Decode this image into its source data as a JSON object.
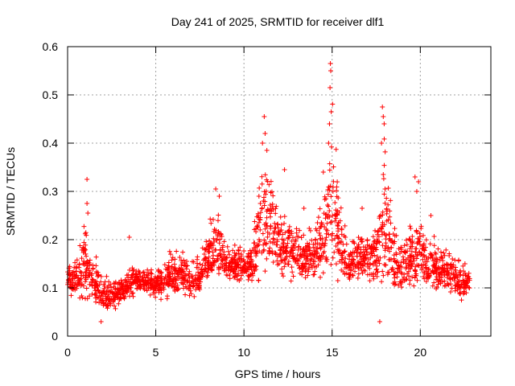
{
  "chart_data": {
    "type": "scatter",
    "title": "Day 241 of 2025, SRMTID for receiver dlf1",
    "xlabel": "GPS time / hours",
    "ylabel": "SRMTID / TECUs",
    "xlim": [
      0,
      24
    ],
    "ylim": [
      0,
      0.6
    ],
    "xticks": [
      0,
      5,
      10,
      15,
      20
    ],
    "xtick_labels": [
      "0",
      "5",
      "10",
      "15",
      "20"
    ],
    "yticks": [
      0,
      0.1,
      0.2,
      0.3,
      0.4,
      0.5,
      0.6
    ],
    "ytick_labels": [
      "0",
      "0.1",
      "0.2",
      "0.3",
      "0.4",
      "0.5",
      "0.6"
    ],
    "grid": true,
    "marker": "+",
    "color": "#ff0000",
    "envelope": {
      "hour": [
        0.0,
        0.5,
        1.0,
        1.5,
        2.0,
        2.5,
        3.0,
        3.5,
        4.0,
        4.5,
        5.0,
        5.5,
        6.0,
        6.5,
        7.0,
        7.5,
        8.0,
        8.5,
        9.0,
        9.5,
        10.0,
        10.5,
        11.0,
        11.5,
        12.0,
        12.5,
        13.0,
        13.5,
        14.0,
        14.5,
        15.0,
        15.5,
        16.0,
        16.5,
        17.0,
        17.5,
        18.0,
        18.5,
        19.0,
        19.5,
        20.0,
        20.5,
        21.0,
        21.5,
        22.0,
        22.5,
        22.8
      ],
      "low": [
        0.08,
        0.07,
        0.05,
        0.05,
        0.04,
        0.04,
        0.06,
        0.07,
        0.08,
        0.08,
        0.07,
        0.06,
        0.07,
        0.08,
        0.07,
        0.08,
        0.09,
        0.1,
        0.1,
        0.1,
        0.1,
        0.09,
        0.09,
        0.1,
        0.11,
        0.11,
        0.11,
        0.1,
        0.1,
        0.09,
        0.09,
        0.09,
        0.09,
        0.1,
        0.1,
        0.09,
        0.08,
        0.08,
        0.08,
        0.09,
        0.09,
        0.08,
        0.08,
        0.08,
        0.07,
        0.07,
        0.08
      ],
      "high": [
        0.15,
        0.18,
        0.26,
        0.2,
        0.14,
        0.13,
        0.14,
        0.15,
        0.16,
        0.16,
        0.16,
        0.17,
        0.2,
        0.18,
        0.17,
        0.18,
        0.25,
        0.28,
        0.21,
        0.2,
        0.2,
        0.22,
        0.42,
        0.38,
        0.3,
        0.26,
        0.24,
        0.22,
        0.25,
        0.33,
        0.55,
        0.28,
        0.22,
        0.23,
        0.24,
        0.25,
        0.45,
        0.24,
        0.22,
        0.25,
        0.28,
        0.22,
        0.22,
        0.2,
        0.18,
        0.16,
        0.17
      ]
    },
    "peaks": [
      {
        "x": 1.1,
        "y": 0.325
      },
      {
        "x": 1.1,
        "y": 0.275
      },
      {
        "x": 1.15,
        "y": 0.255
      },
      {
        "x": 3.5,
        "y": 0.205
      },
      {
        "x": 8.4,
        "y": 0.305
      },
      {
        "x": 8.6,
        "y": 0.29
      },
      {
        "x": 11.15,
        "y": 0.455
      },
      {
        "x": 11.2,
        "y": 0.42
      },
      {
        "x": 11.05,
        "y": 0.4
      },
      {
        "x": 11.3,
        "y": 0.385
      },
      {
        "x": 12.3,
        "y": 0.345
      },
      {
        "x": 13.4,
        "y": 0.265
      },
      {
        "x": 14.5,
        "y": 0.34
      },
      {
        "x": 14.9,
        "y": 0.565
      },
      {
        "x": 14.92,
        "y": 0.55
      },
      {
        "x": 14.88,
        "y": 0.515
      },
      {
        "x": 14.95,
        "y": 0.465
      },
      {
        "x": 14.85,
        "y": 0.44
      },
      {
        "x": 14.8,
        "y": 0.4
      },
      {
        "x": 15.05,
        "y": 0.3
      },
      {
        "x": 16.7,
        "y": 0.265
      },
      {
        "x": 17.85,
        "y": 0.475
      },
      {
        "x": 17.9,
        "y": 0.455
      },
      {
        "x": 17.95,
        "y": 0.44
      },
      {
        "x": 17.8,
        "y": 0.4
      },
      {
        "x": 17.9,
        "y": 0.335
      },
      {
        "x": 18.0,
        "y": 0.305
      },
      {
        "x": 19.7,
        "y": 0.33
      },
      {
        "x": 19.9,
        "y": 0.32
      },
      {
        "x": 19.8,
        "y": 0.3
      },
      {
        "x": 20.6,
        "y": 0.25
      },
      {
        "x": 17.7,
        "y": 0.03
      },
      {
        "x": 1.9,
        "y": 0.03
      }
    ]
  }
}
